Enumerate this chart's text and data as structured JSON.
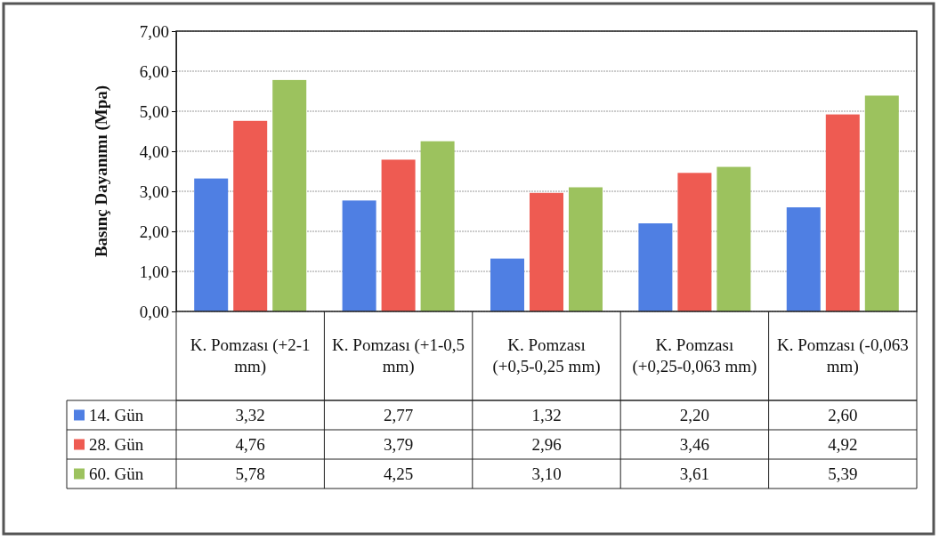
{
  "chart_data": {
    "type": "bar",
    "ylabel": "Basınç Dayanımı (Mpa)",
    "categories": [
      "K. Pomzası (+2-1 mm)",
      "K. Pomzası (+1-0,5 mm)",
      "K. Pomzası (+0,5-0,25 mm)",
      "K. Pomzası (+0,25-0,063 mm)",
      "K. Pomzası (-0,063 mm)"
    ],
    "series": [
      {
        "name": "14. Gün",
        "color": "#4f7fe3",
        "values": [
          3.32,
          2.77,
          1.32,
          2.2,
          2.6
        ],
        "value_labels": [
          "3,32",
          "2,77",
          "1,32",
          "2,20",
          "2,60"
        ]
      },
      {
        "name": "28. Gün",
        "color": "#ee5b52",
        "values": [
          4.76,
          3.79,
          2.96,
          3.46,
          4.92
        ],
        "value_labels": [
          "4,76",
          "3,79",
          "2,96",
          "3,46",
          "4,92"
        ]
      },
      {
        "name": "60. Gün",
        "color": "#9cc25e",
        "values": [
          5.78,
          4.25,
          3.1,
          3.61,
          5.39
        ],
        "value_labels": [
          "5,78",
          "4,25",
          "3,10",
          "3,61",
          "5,39"
        ]
      }
    ],
    "ylim": [
      0,
      7
    ],
    "yticks": [
      {
        "value": 0,
        "label": "0,00"
      },
      {
        "value": 1,
        "label": "1,00"
      },
      {
        "value": 2,
        "label": "2,00"
      },
      {
        "value": 3,
        "label": "3,00"
      },
      {
        "value": 4,
        "label": "4,00"
      },
      {
        "value": 5,
        "label": "5,00"
      },
      {
        "value": 6,
        "label": "6,00"
      },
      {
        "value": 7,
        "label": "7,00"
      }
    ],
    "grid": "y",
    "legend": "bottom"
  }
}
